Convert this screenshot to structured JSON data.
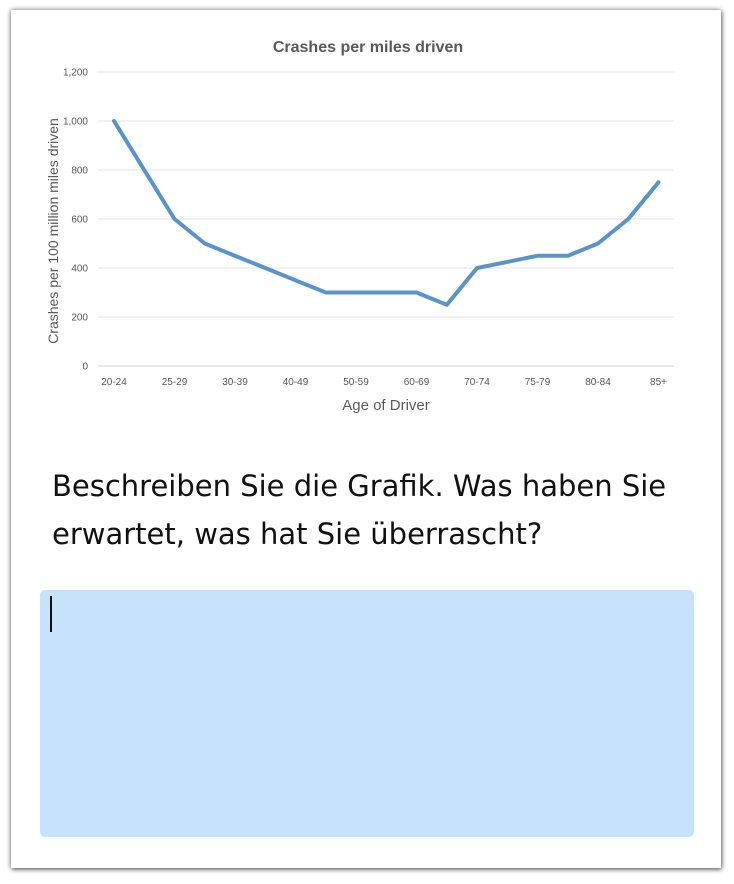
{
  "chart_data": {
    "type": "line",
    "title": "Crashes per miles driven",
    "xlabel": "Age of Driver",
    "ylabel": "Crashes per 100 million miles  driven",
    "categories": [
      "20-24",
      "25-29",
      "30-39",
      "40-49",
      "50-59",
      "60-69",
      "70-74",
      "75-79",
      "80-84",
      "85+"
    ],
    "x": [
      0,
      1,
      1.5,
      2,
      2.5,
      3,
      3.5,
      4,
      4.5,
      5,
      5.5,
      6,
      6.5,
      7,
      7.5,
      8,
      8.5,
      9
    ],
    "series": [
      {
        "values": [
          1000,
          600,
          500,
          450,
          400,
          350,
          300,
          300,
          300,
          300,
          250,
          400,
          425,
          450,
          450,
          500,
          600,
          750
        ]
      }
    ],
    "ylim": [
      0,
      1200
    ],
    "yticks": [
      0,
      200,
      400,
      600,
      800,
      1000,
      1200
    ],
    "yticklabels": [
      "0",
      "200",
      "400",
      "600",
      "800",
      "1,000",
      "1,200"
    ],
    "grid": true,
    "legend": "none",
    "colors": {
      "line": "#5b93c9",
      "grid": "#e3e3e3",
      "text": "#555555"
    }
  },
  "question": {
    "text": "Beschreiben Sie die Grafik. Was haben Sie erwartet, was hat Sie überrascht?"
  },
  "answer": {
    "value": "",
    "background": "#c6e3fb"
  }
}
